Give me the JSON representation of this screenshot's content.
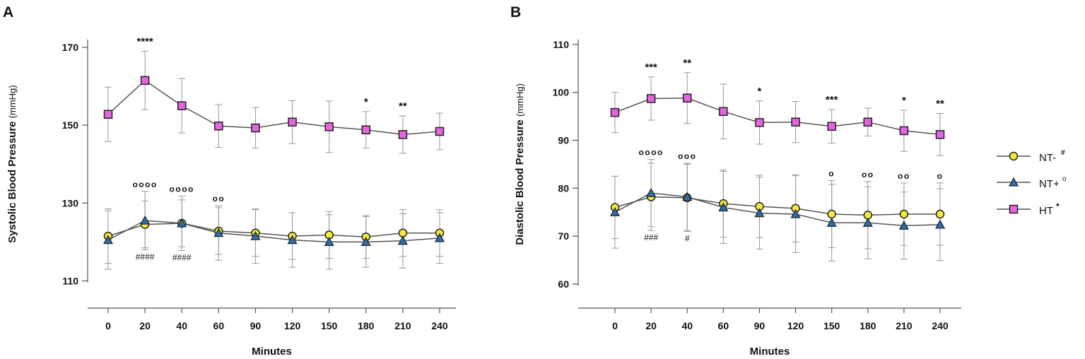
{
  "panels": {
    "a": {
      "letter": "A"
    },
    "b": {
      "letter": "B"
    }
  },
  "legend": {
    "items": [
      {
        "label": "NT-",
        "sup": "#",
        "series": "NT-"
      },
      {
        "label": "NT+",
        "sup": "o",
        "series": "NT+"
      },
      {
        "label": "HT",
        "sup": "*",
        "series": "HT"
      }
    ]
  },
  "colors": {
    "nt_minus_fill": "#f2ea3c",
    "nt_plus_fill": "#2e6ea8",
    "ht_fill": "#e565e0",
    "line": "#555555",
    "axis": "#555555",
    "error_bar": "#999999",
    "text": "#111111"
  },
  "chart_data": [
    {
      "type": "line",
      "panel": "A",
      "title": "",
      "xlabel": "Minutes",
      "ylabel_main": "Systolic Blood Pressure",
      "ylabel_unit": "(mmHg)",
      "categories": [
        "0",
        "20",
        "40",
        "60",
        "90",
        "120",
        "150",
        "180",
        "210",
        "240"
      ],
      "ylim": [
        103,
        172
      ],
      "yticks": [
        110,
        130,
        150,
        170
      ],
      "series": [
        {
          "name": "NT-",
          "marker": "circle",
          "values": [
            121.5,
            124.5,
            124.8,
            122.8,
            122.3,
            121.5,
            121.8,
            121.3,
            122.3,
            122.3
          ],
          "errors": [
            7.0,
            6.0,
            6.0,
            6.0,
            6.0,
            6.0,
            6.0,
            5.5,
            6.0,
            6.0
          ]
        },
        {
          "name": "NT+",
          "marker": "triangle",
          "values": [
            120.5,
            125.5,
            124.8,
            122.3,
            121.5,
            120.5,
            120.0,
            120.0,
            120.3,
            121.0
          ],
          "errors": [
            7.5,
            7.5,
            7.0,
            7.0,
            7.0,
            7.0,
            7.0,
            6.5,
            7.0,
            6.5
          ]
        },
        {
          "name": "HT",
          "marker": "square",
          "values": [
            152.8,
            161.5,
            155.0,
            149.8,
            149.3,
            150.8,
            149.6,
            148.8,
            147.6,
            148.4
          ],
          "errors": [
            7.0,
            7.5,
            7.0,
            5.5,
            5.2,
            5.5,
            6.6,
            4.7,
            4.8,
            4.7
          ]
        }
      ],
      "annotations": [
        {
          "category": "20",
          "text": "****",
          "position": "above-HT"
        },
        {
          "category": "180",
          "text": "*",
          "position": "above-HT"
        },
        {
          "category": "210",
          "text": "**",
          "position": "above-HT"
        },
        {
          "category": "20",
          "text": "oooo",
          "position": "above-NT"
        },
        {
          "category": "40",
          "text": "oooo",
          "position": "above-NT"
        },
        {
          "category": "60",
          "text": "oo",
          "position": "above-NT"
        },
        {
          "category": "20",
          "text": "####",
          "position": "below-NT"
        },
        {
          "category": "40",
          "text": "####",
          "position": "below-NT"
        }
      ]
    },
    {
      "type": "line",
      "panel": "B",
      "title": "",
      "xlabel": "Minutes",
      "ylabel_main": "Diastolic Blood Pressure",
      "ylabel_unit": "(mmHg)",
      "categories": [
        "0",
        "20",
        "40",
        "60",
        "90",
        "120",
        "150",
        "180",
        "210",
        "240"
      ],
      "ylim": [
        55,
        111
      ],
      "yticks": [
        60,
        70,
        80,
        90,
        100,
        110
      ],
      "series": [
        {
          "name": "NT-",
          "marker": "circle",
          "values": [
            76.0,
            78.2,
            78.0,
            76.8,
            76.2,
            75.8,
            74.6,
            74.4,
            74.6,
            74.6
          ],
          "errors": [
            6.5,
            7.0,
            7.0,
            7.0,
            6.5,
            7.0,
            7.0,
            7.0,
            6.5,
            6.5
          ]
        },
        {
          "name": "NT+",
          "marker": "triangle",
          "values": [
            75.0,
            79.0,
            78.2,
            76.0,
            74.8,
            74.6,
            72.8,
            72.8,
            72.2,
            72.4
          ],
          "errors": [
            7.5,
            7.0,
            7.0,
            7.5,
            7.5,
            8.0,
            8.0,
            7.5,
            7.0,
            7.5
          ]
        },
        {
          "name": "HT",
          "marker": "square",
          "values": [
            95.8,
            98.7,
            98.8,
            96.0,
            93.7,
            93.8,
            92.9,
            93.8,
            92.0,
            91.2
          ],
          "errors": [
            4.2,
            4.5,
            5.3,
            5.7,
            4.5,
            4.3,
            3.5,
            2.9,
            4.3,
            4.4
          ]
        }
      ],
      "annotations": [
        {
          "category": "20",
          "text": "***",
          "position": "above-HT"
        },
        {
          "category": "40",
          "text": "**",
          "position": "above-HT"
        },
        {
          "category": "90",
          "text": "*",
          "position": "above-HT"
        },
        {
          "category": "150",
          "text": "***",
          "position": "above-HT"
        },
        {
          "category": "210",
          "text": "*",
          "position": "above-HT"
        },
        {
          "category": "240",
          "text": "**",
          "position": "above-HT"
        },
        {
          "category": "20",
          "text": "oooo",
          "position": "above-NT"
        },
        {
          "category": "40",
          "text": "ooo",
          "position": "above-NT"
        },
        {
          "category": "150",
          "text": "o",
          "position": "above-NT"
        },
        {
          "category": "180",
          "text": "oo",
          "position": "above-NT"
        },
        {
          "category": "210",
          "text": "oo",
          "position": "above-NT"
        },
        {
          "category": "240",
          "text": "o",
          "position": "above-NT"
        },
        {
          "category": "20",
          "text": "###",
          "position": "below-NT"
        },
        {
          "category": "40",
          "text": "#",
          "position": "below-NT"
        }
      ]
    }
  ]
}
